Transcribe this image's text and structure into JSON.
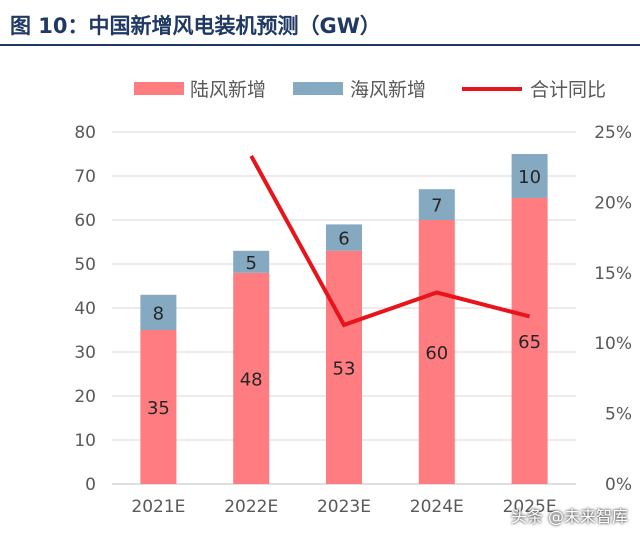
{
  "header": {
    "title": "图 10：中国新增风电装机预测（GW）"
  },
  "watermark": "头条 @未来智库",
  "chart_data": {
    "type": "bar",
    "stacked": true,
    "categories": [
      "2021E",
      "2022E",
      "2023E",
      "2024E",
      "2025E"
    ],
    "series": [
      {
        "name": "陆风新增",
        "type": "bar",
        "axis": "left",
        "color": "#ff7c80",
        "values": [
          35,
          48,
          53,
          60,
          65
        ]
      },
      {
        "name": "海风新增",
        "type": "bar",
        "axis": "left",
        "color": "#84a9c0",
        "values": [
          8,
          5,
          6,
          7,
          10
        ]
      },
      {
        "name": "合计同比",
        "type": "line",
        "axis": "right",
        "color": "#e8141b",
        "values": [
          null,
          23.3,
          11.3,
          13.6,
          11.9
        ]
      }
    ],
    "y_left": {
      "min": 0,
      "max": 80,
      "ticks": [
        "0",
        "10",
        "20",
        "30",
        "40",
        "50",
        "60",
        "70",
        "80"
      ]
    },
    "y_right": {
      "min": 0,
      "max": 25,
      "ticks": [
        "0%",
        "5%",
        "10%",
        "15%",
        "20%",
        "25%"
      ]
    },
    "grid": true,
    "legend": "top"
  }
}
